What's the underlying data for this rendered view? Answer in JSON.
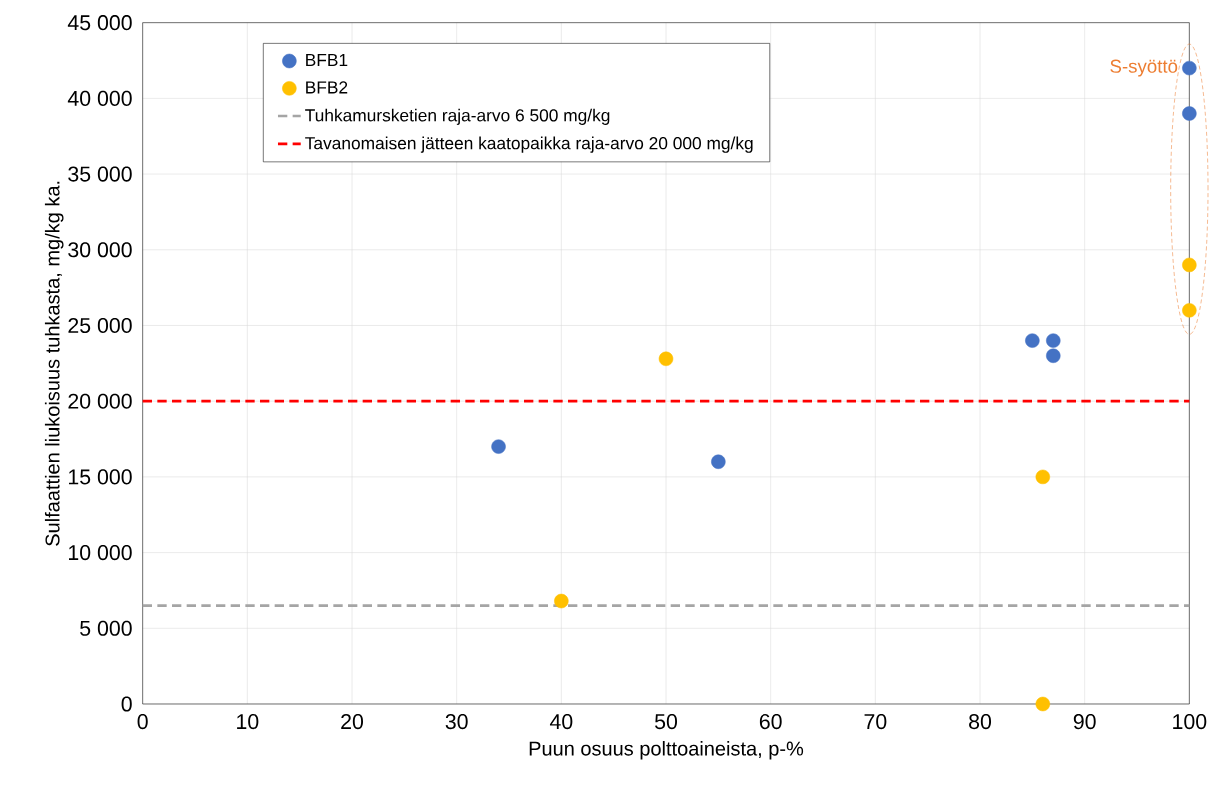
{
  "chart_data": {
    "type": "scatter",
    "xlabel": "Puun osuus polttoaineista, p-%",
    "ylabel": "Sulfaattien liukoisuus tuhkasta, mg/kg ka.",
    "series": [
      {
        "name": "BFB1",
        "color": "#4472c4",
        "x": [
          34,
          55,
          85,
          87,
          87,
          100,
          100
        ],
        "values": [
          17000,
          16000,
          24000,
          24000,
          23000,
          42000,
          39000
        ]
      },
      {
        "name": "BFB2",
        "color": "#ffc000",
        "x": [
          40,
          50,
          86,
          86,
          100,
          100
        ],
        "values": [
          6800,
          22800,
          15000,
          0,
          29000,
          26000
        ]
      }
    ],
    "ref_lines": [
      {
        "axis": "y",
        "value": 6500,
        "label": "Tuhkamursketien raja-arvo 6 500 mg/kg",
        "color": "#a5a5a5",
        "line_style": "dashed"
      },
      {
        "axis": "y",
        "value": 20000,
        "label": "Tavanomaisen jätteen kaatopaikka raja-arvo 20 000 mg/kg",
        "color": "#ff0000",
        "line_style": "dashed"
      }
    ],
    "annotations": [
      "S-syöttö"
    ],
    "xlim": [
      0,
      100
    ],
    "xticks": [
      0,
      10,
      20,
      30,
      40,
      50,
      60,
      70,
      80,
      90,
      100
    ],
    "ylim": [
      0,
      45000
    ],
    "yticks": [
      0,
      {
        "value": 5000,
        "label": "5 000"
      },
      {
        "value": 10000,
        "label": "10 000"
      },
      {
        "value": 15000,
        "label": "15 000"
      },
      {
        "value": 20000,
        "label": "20 000"
      },
      {
        "value": 25000,
        "label": "25 000"
      },
      {
        "value": 30000,
        "label": "30 000"
      },
      {
        "value": 35000,
        "label": "35 000"
      },
      {
        "value": 40000,
        "label": "40 000"
      },
      {
        "value": 45000,
        "label": "45 000"
      }
    ],
    "grid": true,
    "legend": "top left",
    "marker": "circle"
  }
}
